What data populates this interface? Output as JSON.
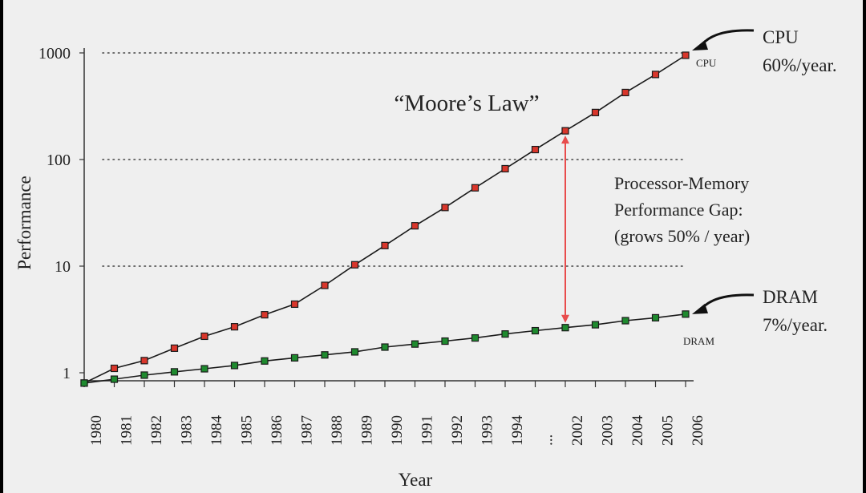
{
  "chart_data": {
    "type": "line",
    "title": "“Moore’s Law”",
    "xlabel": "Year",
    "ylabel": "Performance",
    "y_scale": "log",
    "ylim": [
      0.75,
      1000
    ],
    "y_ticks": [
      1,
      10,
      100,
      1000
    ],
    "y_tick_labels": [
      "1",
      "10",
      "100",
      "1000"
    ],
    "categories": [
      "1980",
      "1981",
      "1982",
      "1983",
      "1984",
      "1985",
      "1986",
      "1987",
      "1988",
      "1989",
      "1990",
      "1991",
      "1992",
      "1993",
      "1994",
      "...",
      "2002",
      "2003",
      "2004",
      "2005",
      "2006"
    ],
    "grid": "horizontal dotted at 10, 100, 1000",
    "series": [
      {
        "name": "CPU",
        "color": "#d9362b",
        "values": [
          0.8,
          1.1,
          1.3,
          1.7,
          2.2,
          2.7,
          3.5,
          4.4,
          6.6,
          10.3,
          15.6,
          23.9,
          35.5,
          54.3,
          82.0,
          124.0,
          186.0,
          276.0,
          425.0,
          628.0,
          950.0
        ]
      },
      {
        "name": "DRAM",
        "color": "#1e8a2e",
        "values": [
          0.8,
          0.87,
          0.95,
          1.02,
          1.09,
          1.17,
          1.29,
          1.38,
          1.47,
          1.57,
          1.74,
          1.86,
          1.98,
          2.12,
          2.31,
          2.48,
          2.65,
          2.82,
          3.08,
          3.28,
          3.55
        ]
      }
    ],
    "annotations": {
      "cpu_label": "CPU",
      "cpu_rate_title": "CPU",
      "cpu_rate": "60%/year.",
      "dram_label": "DRAM",
      "dram_rate_title": "DRAM",
      "dram_rate": "7%/year.",
      "gap_line1": "Processor-Memory",
      "gap_line2": "Performance Gap:",
      "gap_line3": "(grows 50% / year)"
    },
    "colors": {
      "moore_title": "#e84c4c",
      "gap_arrow": "#e84c4c",
      "axis": "#333333",
      "grid": "#444444"
    }
  }
}
